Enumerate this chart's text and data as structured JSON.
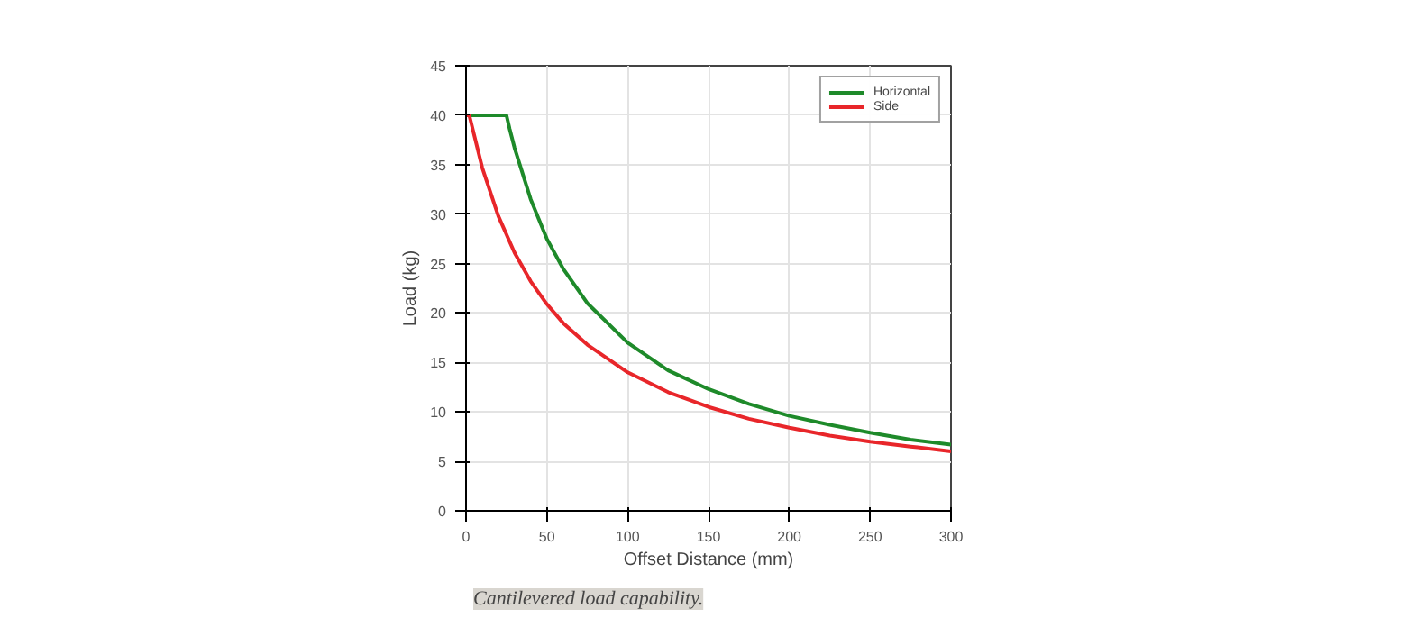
{
  "chart_data": {
    "type": "line",
    "xlabel": "Offset Distance (mm)",
    "ylabel": "Load (kg)",
    "xlim": [
      0,
      300
    ],
    "ylim": [
      0,
      45
    ],
    "xticks": [
      0,
      50,
      100,
      150,
      200,
      250,
      300
    ],
    "yticks": [
      0,
      5,
      10,
      15,
      20,
      25,
      30,
      35,
      40,
      45
    ],
    "grid": true,
    "legend": "top right",
    "annotations": [
      "Cantilevered load capability."
    ],
    "series": [
      {
        "name": "Horizontal",
        "color": "#1e8a2a",
        "x": [
          0,
          25,
          27,
          30,
          40,
          50,
          60,
          75,
          100,
          125,
          150,
          175,
          200,
          225,
          250,
          275,
          300
        ],
        "values": [
          40,
          40,
          38.6,
          36.7,
          31.5,
          27.5,
          24.5,
          21.0,
          17.0,
          14.2,
          12.3,
          10.8,
          9.6,
          8.7,
          7.9,
          7.2,
          6.7
        ]
      },
      {
        "name": "Side",
        "color": "#e8262a",
        "x": [
          0,
          2,
          10,
          20,
          30,
          40,
          50,
          60,
          75,
          100,
          125,
          150,
          175,
          200,
          225,
          250,
          275,
          300
        ],
        "values": [
          40,
          40,
          34.7,
          29.8,
          26.1,
          23.2,
          20.9,
          19.0,
          16.8,
          14.0,
          12.0,
          10.5,
          9.3,
          8.4,
          7.6,
          7.0,
          6.5,
          6.0
        ]
      }
    ]
  }
}
